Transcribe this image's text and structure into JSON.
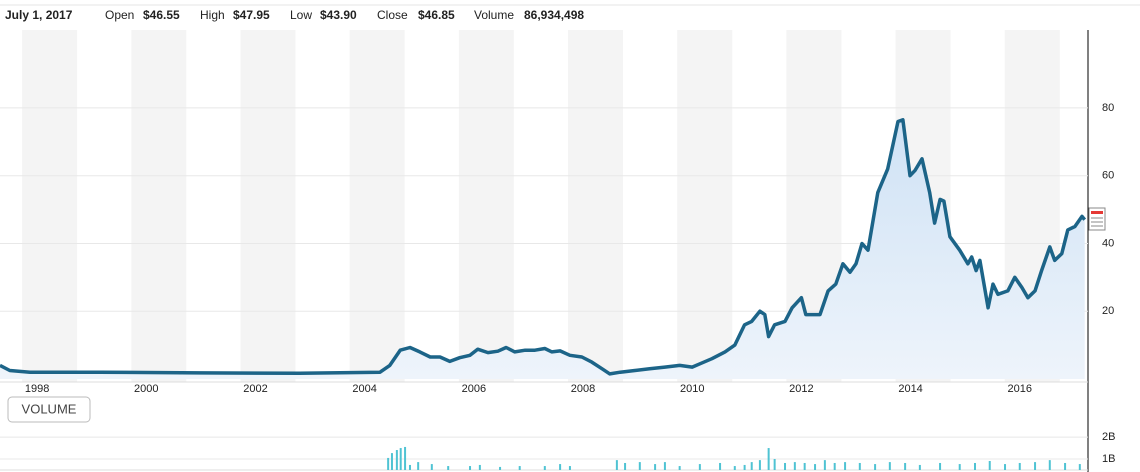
{
  "header": {
    "date": "July 1, 2017",
    "fields": [
      {
        "label": "Open",
        "value": "$46.55"
      },
      {
        "label": "High",
        "value": "$47.95"
      },
      {
        "label": "Low",
        "value": "$43.90"
      },
      {
        "label": "Close",
        "value": "$46.85"
      },
      {
        "label": "Volume",
        "value": "86,934,498"
      }
    ]
  },
  "chart_data": [
    {
      "type": "line",
      "color": "#1c6488",
      "x": [
        1997.32,
        1997.5,
        1997.87,
        1999.15,
        2000.98,
        2002.81,
        2004.28,
        2004.46,
        2004.65,
        2004.83,
        2005.01,
        2005.2,
        2005.38,
        2005.56,
        2005.74,
        2005.93,
        2006.07,
        2006.26,
        2006.44,
        2006.59,
        2006.75,
        2006.94,
        2007.12,
        2007.3,
        2007.43,
        2007.58,
        2007.76,
        2007.98,
        2008.16,
        2008.35,
        2008.49,
        2008.68,
        2008.95,
        2009.22,
        2009.5,
        2009.77,
        2010.0,
        2010.14,
        2010.36,
        2010.6,
        2010.78,
        2010.96,
        2011.09,
        2011.24,
        2011.33,
        2011.4,
        2011.51,
        2011.7,
        2011.83,
        2012.0,
        2012.08,
        2012.34,
        2012.49,
        2012.63,
        2012.76,
        2012.89,
        2013.0,
        2013.11,
        2013.22,
        2013.4,
        2013.58,
        2013.77,
        2013.86,
        2013.99,
        2014.08,
        2014.21,
        2014.35,
        2014.44,
        2014.54,
        2014.61,
        2014.72,
        2014.9,
        2015.05,
        2015.12,
        2015.2,
        2015.27,
        2015.42,
        2015.51,
        2015.6,
        2015.78,
        2015.91,
        2016.04,
        2016.15,
        2016.28,
        2016.4,
        2016.55,
        2016.64,
        2016.77,
        2016.88,
        2017.01,
        2017.14,
        2017.19
      ],
      "values": [
        4,
        2.5,
        2,
        2,
        1.8,
        1.7,
        2,
        4,
        8.5,
        9.3,
        8,
        6.5,
        6.5,
        5.2,
        6.3,
        7,
        8.8,
        7.8,
        8.2,
        9.3,
        8,
        8.5,
        8.5,
        9,
        8,
        8.3,
        7,
        6.5,
        5,
        3,
        1.5,
        2,
        2.5,
        3,
        3.5,
        4,
        3.5,
        4.5,
        6,
        8,
        10,
        16,
        17,
        20,
        19,
        12.5,
        16,
        17,
        21,
        24,
        19,
        19,
        26,
        28,
        34,
        31.5,
        34,
        40,
        38,
        55,
        62,
        76,
        76.5,
        60,
        61.5,
        65,
        55,
        46,
        53,
        52.5,
        42,
        38,
        34,
        36,
        32,
        35,
        21,
        28,
        25,
        26,
        30,
        27,
        24,
        26,
        32,
        39,
        35,
        37,
        44,
        45,
        48,
        47
      ],
      "xlim": [
        1997.32,
        2017.25
      ],
      "ylim": [
        0,
        103
      ],
      "xticks": [
        1998,
        2000,
        2002,
        2004,
        2006,
        2008,
        2010,
        2012,
        2014,
        2016
      ],
      "yticks": [
        20,
        40,
        60,
        80
      ],
      "grid": true
    },
    {
      "type": "bar",
      "title": "VOLUME",
      "color": "#4fc3d3",
      "x": [
        2004.43,
        2004.5,
        2004.59,
        2004.66,
        2004.74,
        2004.83,
        2004.98,
        2005.23,
        2005.53,
        2005.93,
        2006.11,
        2006.48,
        2006.84,
        2007.3,
        2007.58,
        2007.76,
        2008.62,
        2008.77,
        2009.04,
        2009.32,
        2009.5,
        2009.77,
        2010.14,
        2010.51,
        2010.78,
        2010.96,
        2011.09,
        2011.24,
        2011.4,
        2011.51,
        2011.7,
        2011.88,
        2012.06,
        2012.25,
        2012.43,
        2012.61,
        2012.8,
        2013.07,
        2013.35,
        2013.62,
        2013.9,
        2014.17,
        2014.54,
        2014.9,
        2015.18,
        2015.45,
        2015.73,
        2016.0,
        2016.28,
        2016.55,
        2016.83,
        2017.1
      ],
      "values": [
        1.05,
        1.27,
        1.41,
        1.5,
        1.55,
        0.73,
        0.86,
        0.77,
        0.68,
        0.68,
        0.73,
        0.64,
        0.68,
        0.68,
        0.77,
        0.68,
        0.95,
        0.82,
        0.86,
        0.77,
        0.86,
        0.68,
        0.77,
        0.82,
        0.68,
        0.73,
        0.86,
        0.95,
        1.5,
        1.0,
        0.82,
        0.86,
        0.82,
        0.77,
        0.95,
        0.82,
        0.86,
        0.82,
        0.77,
        0.86,
        0.82,
        0.73,
        0.82,
        0.77,
        0.82,
        0.91,
        0.77,
        0.82,
        0.86,
        0.95,
        0.82,
        0.77
      ],
      "ylim": [
        0.5,
        2.55
      ],
      "yticks": [
        {
          "value": 2,
          "label": "2B"
        },
        {
          "value": 1,
          "label": "1B"
        }
      ],
      "grid": true
    }
  ]
}
